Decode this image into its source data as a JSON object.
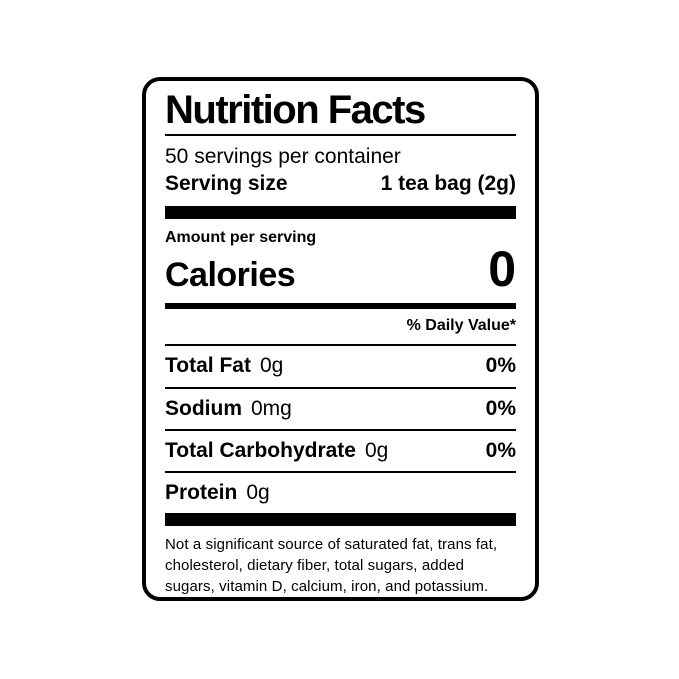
{
  "label": {
    "title": "Nutrition Facts",
    "servings_per_container": "50 servings per container",
    "serving_size": {
      "label": "Serving size",
      "value": "1 tea bag (2g)"
    },
    "amount_per_serving": "Amount per serving",
    "calories": {
      "label": "Calories",
      "value": "0"
    },
    "daily_value_header": "% Daily Value*",
    "nutrients": [
      {
        "name": "Total Fat",
        "amount": "0g",
        "dv": "0%"
      },
      {
        "name": "Sodium",
        "amount": "0mg",
        "dv": "0%"
      },
      {
        "name": "Total Carbohydrate",
        "amount": "0g",
        "dv": "0%"
      },
      {
        "name": "Protein",
        "amount": "0g",
        "dv": ""
      }
    ],
    "footnote": "Not a significant source of saturated fat, trans fat, cholesterol, dietary fiber, total sugars, added sugars, vitamin D, calcium, iron, and potassium.",
    "colors": {
      "text": "#000000",
      "background": "#ffffff",
      "border": "#000000"
    }
  }
}
